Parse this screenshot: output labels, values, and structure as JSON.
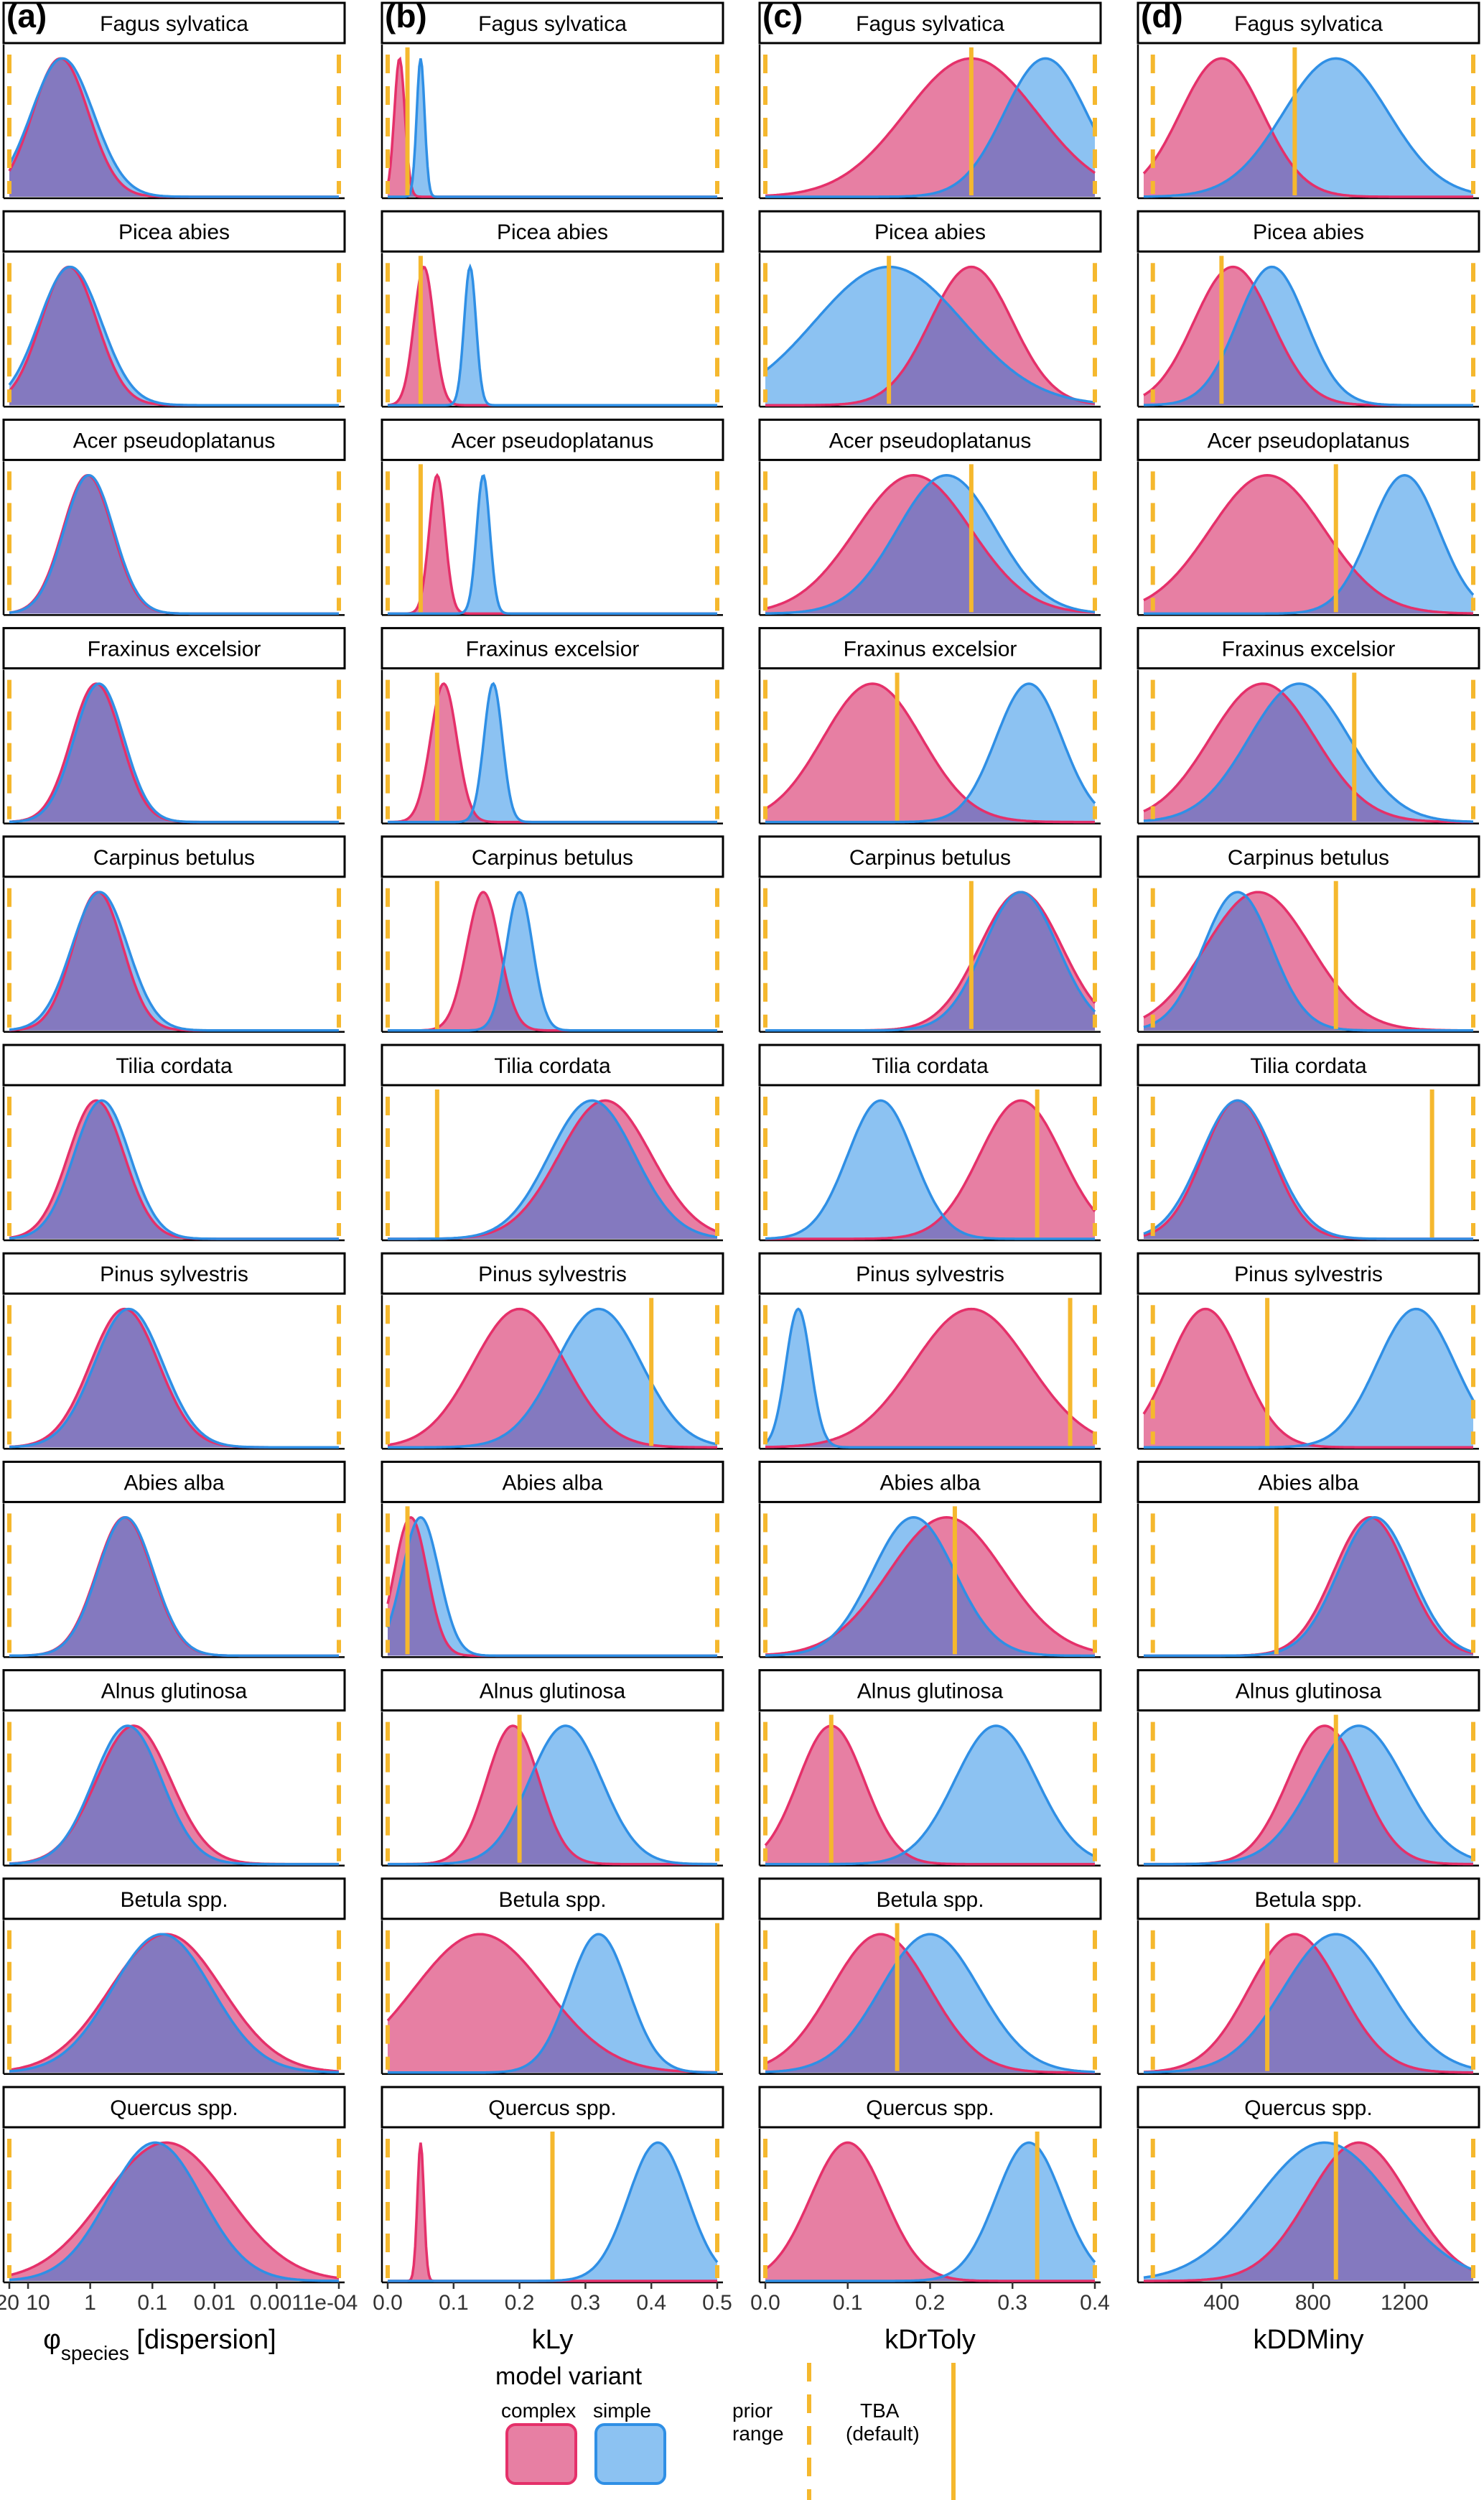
{
  "chart_data": {
    "type": "area",
    "grid": false,
    "legend_position": "bottom",
    "species": [
      "Fagus sylvatica",
      "Picea abies",
      "Acer pseudoplatanus",
      "Fraxinus excelsior",
      "Carpinus betulus",
      "Tilia cordata",
      "Pinus sylvestris",
      "Abies alba",
      "Alnus glutinosa",
      "Betula spp.",
      "Quercus spp."
    ],
    "series_colors": {
      "complex": "#e5306a",
      "simple": "#2f8fe5",
      "complex_fill": "#e77fa3",
      "simple_fill": "#8cc2f2",
      "overlap_fill": "#8479bf",
      "prior": "#f5b82e",
      "tba": "#f5b82e"
    },
    "panels": [
      {
        "id": "a",
        "letter": "(a)",
        "xlabel_main": "φ",
        "xlabel_sub": "species",
        "xlabel_rest": " [dispersion]",
        "scale": "log10-reversed",
        "xlim": [
          20,
          0.0001
        ],
        "ticks": [
          20,
          10,
          1,
          0.1,
          0.01,
          0.001,
          0.0001
        ],
        "tick_labels": [
          "20",
          "10",
          "1",
          "0.1",
          "0.01",
          "0.001",
          "1e-04"
        ],
        "prior_range": [
          20,
          0.0001
        ],
        "tba": null,
        "densities": [
          {
            "complex": {
              "c": 3.0,
              "s": 0.45
            },
            "simple": {
              "c": 2.8,
              "s": 0.5
            }
          },
          {
            "complex": {
              "c": 2.2,
              "s": 0.45
            },
            "simple": {
              "c": 2.1,
              "s": 0.5
            }
          },
          {
            "complex": {
              "c": 1.1,
              "s": 0.4
            },
            "simple": {
              "c": 1.05,
              "s": 0.4
            }
          },
          {
            "complex": {
              "c": 0.8,
              "s": 0.4
            },
            "simple": {
              "c": 0.72,
              "s": 0.4
            }
          },
          {
            "complex": {
              "c": 0.75,
              "s": 0.4
            },
            "simple": {
              "c": 0.7,
              "s": 0.45
            }
          },
          {
            "complex": {
              "c": 0.8,
              "s": 0.45
            },
            "simple": {
              "c": 0.65,
              "s": 0.45
            }
          },
          {
            "complex": {
              "c": 0.28,
              "s": 0.55
            },
            "simple": {
              "c": 0.24,
              "s": 0.55
            }
          },
          {
            "complex": {
              "c": 0.28,
              "s": 0.45
            },
            "simple": {
              "c": 0.27,
              "s": 0.45
            }
          },
          {
            "complex": {
              "c": 0.2,
              "s": 0.6
            },
            "simple": {
              "c": 0.25,
              "s": 0.55
            }
          },
          {
            "complex": {
              "c": 0.06,
              "s": 0.9
            },
            "simple": {
              "c": 0.07,
              "s": 0.8
            }
          },
          {
            "complex": {
              "c": 0.06,
              "s": 1.0
            },
            "simple": {
              "c": 0.09,
              "s": 0.75
            }
          }
        ]
      },
      {
        "id": "b",
        "letter": "(b)",
        "xlabel": "kLy",
        "scale": "linear",
        "xlim": [
          0,
          0.5
        ],
        "ticks": [
          0.0,
          0.1,
          0.2,
          0.3,
          0.4,
          0.5
        ],
        "tick_labels": [
          "0.0",
          "0.1",
          "0.2",
          "0.3",
          "0.4",
          "0.5"
        ],
        "prior_range": [
          0,
          0.5
        ],
        "tba": [
          0.03,
          0.05,
          0.05,
          0.075,
          0.075,
          0.075,
          0.4,
          0.03,
          0.2,
          0.5,
          0.25
        ],
        "densities": [
          {
            "complex": {
              "c": 0.018,
              "s": 0.008
            },
            "simple": {
              "c": 0.05,
              "s": 0.006
            }
          },
          {
            "complex": {
              "c": 0.055,
              "s": 0.015
            },
            "simple": {
              "c": 0.125,
              "s": 0.009
            }
          },
          {
            "complex": {
              "c": 0.075,
              "s": 0.012
            },
            "simple": {
              "c": 0.145,
              "s": 0.01
            }
          },
          {
            "complex": {
              "c": 0.085,
              "s": 0.02
            },
            "simple": {
              "c": 0.16,
              "s": 0.014
            }
          },
          {
            "complex": {
              "c": 0.145,
              "s": 0.025
            },
            "simple": {
              "c": 0.2,
              "s": 0.02
            }
          },
          {
            "complex": {
              "c": 0.33,
              "s": 0.07
            },
            "simple": {
              "c": 0.31,
              "s": 0.065
            }
          },
          {
            "complex": {
              "c": 0.2,
              "s": 0.07
            },
            "simple": {
              "c": 0.32,
              "s": 0.065
            }
          },
          {
            "complex": {
              "c": 0.035,
              "s": 0.025
            },
            "simple": {
              "c": 0.05,
              "s": 0.028
            }
          },
          {
            "complex": {
              "c": 0.19,
              "s": 0.04
            },
            "simple": {
              "c": 0.27,
              "s": 0.055
            }
          },
          {
            "complex": {
              "c": 0.14,
              "s": 0.1
            },
            "simple": {
              "c": 0.32,
              "s": 0.045
            }
          },
          {
            "complex": {
              "c": 0.05,
              "s": 0.005
            },
            "simple": {
              "c": 0.41,
              "s": 0.045
            }
          }
        ]
      },
      {
        "id": "c",
        "letter": "(c)",
        "xlabel": "kDrToly",
        "scale": "linear",
        "xlim": [
          0,
          0.4
        ],
        "ticks": [
          0.0,
          0.1,
          0.2,
          0.3,
          0.4
        ],
        "tick_labels": [
          "0.0",
          "0.1",
          "0.2",
          "0.3",
          "0.4"
        ],
        "prior_range": [
          0,
          0.4
        ],
        "tba": [
          0.25,
          0.15,
          0.25,
          0.16,
          0.25,
          0.33,
          0.37,
          0.23,
          0.08,
          0.16,
          0.33
        ],
        "densities": [
          {
            "complex": {
              "c": 0.25,
              "s": 0.08
            },
            "simple": {
              "c": 0.34,
              "s": 0.05
            }
          },
          {
            "complex": {
              "c": 0.25,
              "s": 0.05
            },
            "simple": {
              "c": 0.15,
              "s": 0.09
            }
          },
          {
            "complex": {
              "c": 0.18,
              "s": 0.07
            },
            "simple": {
              "c": 0.22,
              "s": 0.06
            }
          },
          {
            "complex": {
              "c": 0.13,
              "s": 0.06
            },
            "simple": {
              "c": 0.32,
              "s": 0.04
            }
          },
          {
            "complex": {
              "c": 0.31,
              "s": 0.05
            },
            "simple": {
              "c": 0.31,
              "s": 0.045
            }
          },
          {
            "complex": {
              "c": 0.31,
              "s": 0.05
            },
            "simple": {
              "c": 0.14,
              "s": 0.04
            }
          },
          {
            "complex": {
              "c": 0.25,
              "s": 0.07
            },
            "simple": {
              "c": 0.04,
              "s": 0.015
            }
          },
          {
            "complex": {
              "c": 0.22,
              "s": 0.07
            },
            "simple": {
              "c": 0.18,
              "s": 0.05
            }
          },
          {
            "complex": {
              "c": 0.08,
              "s": 0.04
            },
            "simple": {
              "c": 0.28,
              "s": 0.05
            }
          },
          {
            "complex": {
              "c": 0.14,
              "s": 0.06
            },
            "simple": {
              "c": 0.2,
              "s": 0.06
            }
          },
          {
            "complex": {
              "c": 0.1,
              "s": 0.045
            },
            "simple": {
              "c": 0.32,
              "s": 0.04
            }
          }
        ]
      },
      {
        "id": "d",
        "letter": "(d)",
        "xlabel": "kDDMiny",
        "scale": "linear",
        "xlim": [
          60,
          1500
        ],
        "ticks": [
          400,
          800,
          1200
        ],
        "tick_labels": [
          "400",
          "800",
          "1200"
        ],
        "prior_range": [
          100,
          1500
        ],
        "tba": [
          720,
          400,
          900,
          980,
          900,
          1320,
          600,
          640,
          900,
          600,
          900
        ],
        "densities": [
          {
            "complex": {
              "c": 400,
              "s": 180
            },
            "simple": {
              "c": 900,
              "s": 230
            }
          },
          {
            "complex": {
              "c": 450,
              "s": 170
            },
            "simple": {
              "c": 620,
              "s": 150
            }
          },
          {
            "complex": {
              "c": 600,
              "s": 250
            },
            "simple": {
              "c": 1200,
              "s": 150
            }
          },
          {
            "complex": {
              "c": 580,
              "s": 230
            },
            "simple": {
              "c": 740,
              "s": 220
            }
          },
          {
            "complex": {
              "c": 560,
              "s": 230
            },
            "simple": {
              "c": 470,
              "s": 150
            }
          },
          {
            "complex": {
              "c": 470,
              "s": 150
            },
            "simple": {
              "c": 470,
              "s": 160
            }
          },
          {
            "complex": {
              "c": 330,
              "s": 160
            },
            "simple": {
              "c": 1250,
              "s": 170
            }
          },
          {
            "complex": {
              "c": 1050,
              "s": 160
            },
            "simple": {
              "c": 1070,
              "s": 160
            }
          },
          {
            "complex": {
              "c": 850,
              "s": 160
            },
            "simple": {
              "c": 1000,
              "s": 200
            }
          },
          {
            "complex": {
              "c": 720,
              "s": 200
            },
            "simple": {
              "c": 900,
              "s": 230
            }
          },
          {
            "complex": {
              "c": 1000,
              "s": 220
            },
            "simple": {
              "c": 850,
              "s": 290
            }
          }
        ]
      }
    ]
  },
  "legend": {
    "title": "model variant",
    "complex_label": "complex",
    "simple_label": "simple",
    "prior_label_1": "prior",
    "prior_label_2": "range",
    "tba_label_1": "TBA",
    "tba_label_2": "(default)"
  }
}
